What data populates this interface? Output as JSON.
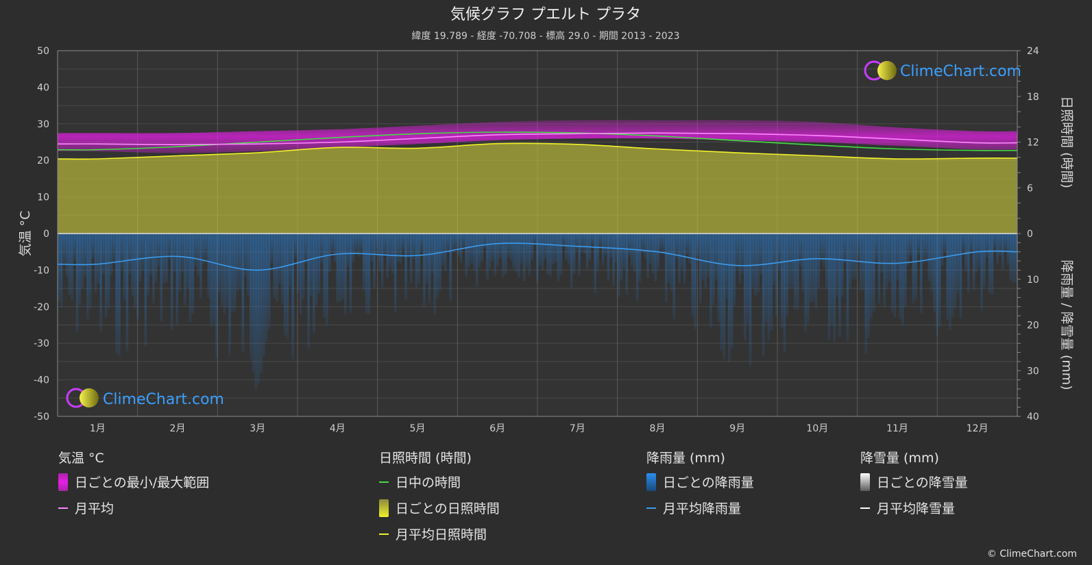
{
  "chart_data": {
    "type": "line",
    "title": "気候グラフ プエルト プラタ",
    "subtitle": "緯度 19.789 - 経度 -70.708 - 標高 29.0 - 期間 2013 - 2023",
    "categories": [
      "1月",
      "2月",
      "3月",
      "4月",
      "5月",
      "6月",
      "7月",
      "8月",
      "9月",
      "10月",
      "11月",
      "12月"
    ],
    "y_left": {
      "label": "気温 °C",
      "ticks": [
        "50",
        "40",
        "30",
        "20",
        "10",
        "0",
        "-10",
        "-20",
        "-30",
        "-40",
        "-50"
      ],
      "range": [
        -50,
        50
      ]
    },
    "y_right_top": {
      "label": "日照時間 (時間)",
      "ticks": [
        "24",
        "18",
        "12",
        "6",
        "0"
      ],
      "range": [
        0,
        24
      ]
    },
    "y_right_bottom": {
      "label": "降雨量 / 降雪量 (mm)",
      "ticks": [
        "0",
        "10",
        "20",
        "30",
        "40"
      ],
      "range": [
        0,
        40
      ]
    },
    "grid": true,
    "series": [
      {
        "name": "日ごとの最小/最大範囲",
        "kind": "band",
        "color": "#e51fe5",
        "low": [
          22.5,
          22.0,
          22.5,
          23.5,
          24.5,
          25.5,
          26.0,
          26.0,
          25.5,
          25.0,
          24.0,
          23.0
        ],
        "high": [
          27.5,
          27.5,
          28.0,
          28.5,
          29.5,
          30.5,
          31.0,
          31.0,
          31.0,
          30.5,
          29.0,
          28.0
        ]
      },
      {
        "name": "月平均",
        "kind": "line",
        "axis": "temperature",
        "color": "#ff88ff",
        "values": [
          24.5,
          24.3,
          24.5,
          25.0,
          26.0,
          27.0,
          27.3,
          27.5,
          27.3,
          26.8,
          25.8,
          24.8
        ]
      },
      {
        "name": "日中の時間",
        "kind": "line",
        "axis": "sunshine",
        "color": "#44dd44",
        "values": [
          11.0,
          11.4,
          12.0,
          12.6,
          13.1,
          13.3,
          13.2,
          12.8,
          12.2,
          11.6,
          11.1,
          10.9
        ]
      },
      {
        "name": "日ごとの日照時間",
        "kind": "area",
        "axis": "sunshine",
        "color": "#c8c83a",
        "values": [
          9.8,
          10.2,
          10.6,
          11.3,
          11.2,
          11.8,
          11.7,
          11.1,
          10.6,
          10.2,
          9.8,
          9.9
        ]
      },
      {
        "name": "月平均日照時間",
        "kind": "line",
        "axis": "sunshine",
        "color": "#f2f22c",
        "values": [
          9.8,
          10.2,
          10.6,
          11.3,
          11.2,
          11.8,
          11.7,
          11.1,
          10.6,
          10.2,
          9.8,
          9.9
        ]
      },
      {
        "name": "日ごとの降雨量",
        "kind": "bars",
        "axis": "precipitation",
        "color": "#2a7fd4"
      },
      {
        "name": "月平均降雨量",
        "kind": "line",
        "axis": "precipitation",
        "color": "#3a9cf0",
        "values": [
          6.7,
          5.0,
          8.0,
          4.5,
          4.8,
          2.2,
          2.8,
          4.0,
          7.0,
          5.5,
          6.5,
          4.0
        ]
      },
      {
        "name": "日ごとの降雪量",
        "kind": "bars",
        "axis": "precipitation",
        "color": "#cccccc"
      },
      {
        "name": "月平均降雪量",
        "kind": "line",
        "axis": "precipitation",
        "color": "#ffffff",
        "values": [
          0,
          0,
          0,
          0,
          0,
          0,
          0,
          0,
          0,
          0,
          0,
          0
        ]
      }
    ]
  },
  "watermark": {
    "text": "ClimeChart.com"
  },
  "legend": {
    "temperature": {
      "title": "気温 °C",
      "items": [
        {
          "label": "日ごとの最小/最大範囲"
        },
        {
          "label": "月平均"
        }
      ]
    },
    "sunshine": {
      "title": "日照時間 (時間)",
      "items": [
        {
          "label": "日中の時間"
        },
        {
          "label": "日ごとの日照時間"
        },
        {
          "label": "月平均日照時間"
        }
      ]
    },
    "rain": {
      "title": "降雨量 (mm)",
      "items": [
        {
          "label": "日ごとの降雨量"
        },
        {
          "label": "月平均降雨量"
        }
      ]
    },
    "snow": {
      "title": "降雪量 (mm)",
      "items": [
        {
          "label": "日ごとの降雪量"
        },
        {
          "label": "月平均降雪量"
        }
      ]
    }
  },
  "copyright": "© ClimeChart.com"
}
